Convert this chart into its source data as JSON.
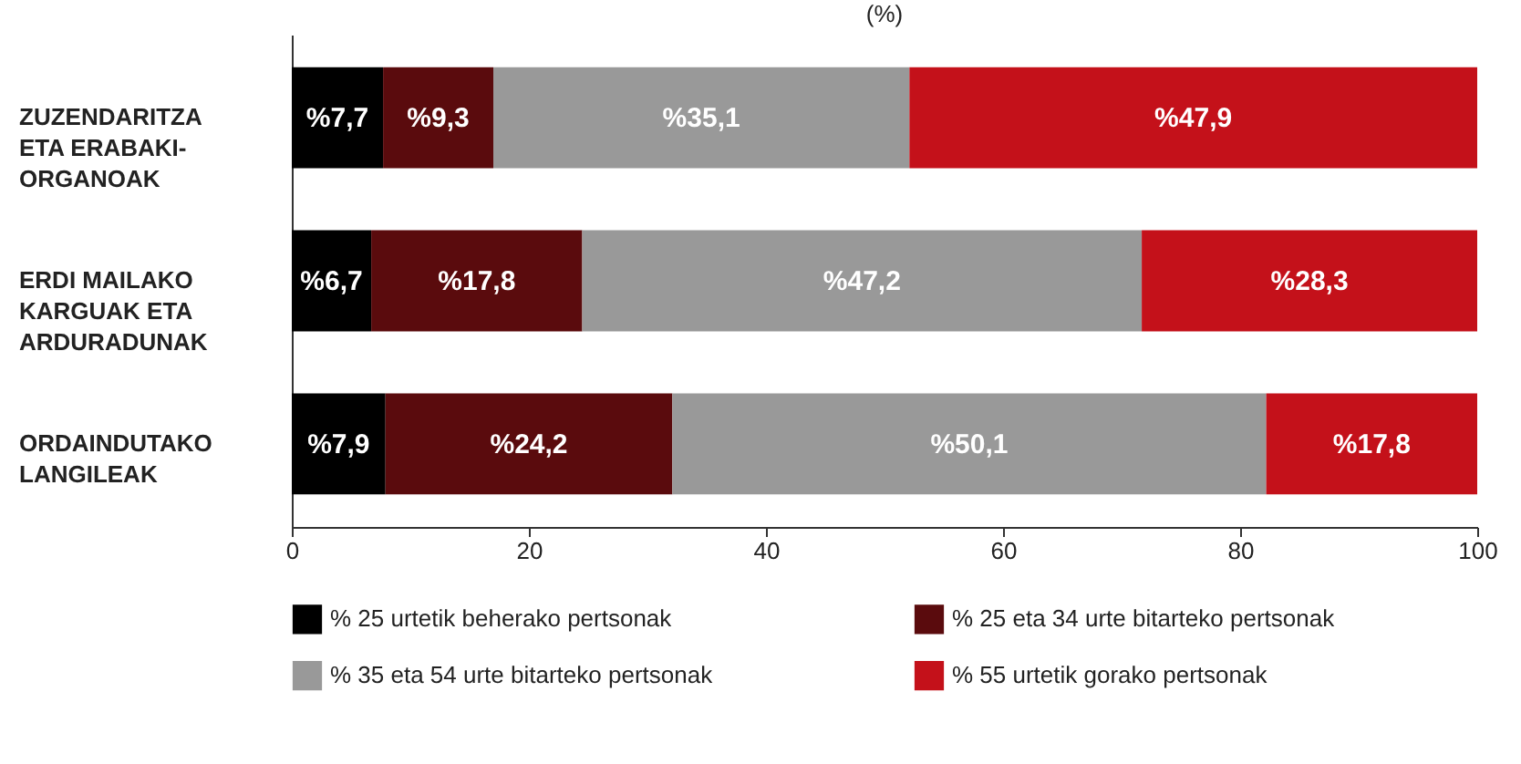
{
  "chart_data": {
    "type": "bar",
    "orientation": "horizontal",
    "stacked": true,
    "title": "(%)",
    "categories": [
      "ZUZENDARITZA ETA ERABAKI-ORGANOAK",
      "ERDI MAILAKO KARGUAK ETA ARDURADUNAK",
      "ORDAINDUTAKO LANGILEAK"
    ],
    "series": [
      {
        "name": "% 25 urtetik beherako pertsonak",
        "color": "#000000",
        "values": [
          7.7,
          6.7,
          7.9
        ],
        "value_labels": [
          "%7,7",
          "%6,7",
          "%7,9"
        ]
      },
      {
        "name": "% 25 eta 34 urte bitarteko pertsonak",
        "color": "#5a0b0d",
        "values": [
          9.3,
          17.8,
          24.2
        ],
        "value_labels": [
          "%9,3",
          "%17,8",
          "%24,2"
        ]
      },
      {
        "name": "% 35 eta 54 urte bitarteko pertsonak",
        "color": "#999999",
        "values": [
          35.1,
          47.2,
          50.1
        ],
        "value_labels": [
          "%35,1",
          "%47,2",
          "%50,1"
        ]
      },
      {
        "name": "% 55 urtetik gorako pertsonak",
        "color": "#c4111a",
        "values": [
          47.9,
          28.3,
          17.8
        ],
        "value_labels": [
          "%47,9",
          "%28,3",
          "%17,8"
        ]
      }
    ],
    "xlim": [
      0,
      100
    ],
    "xticks": [
      0,
      20,
      40,
      60,
      80,
      100
    ],
    "grid": false,
    "legend": "bottom"
  }
}
